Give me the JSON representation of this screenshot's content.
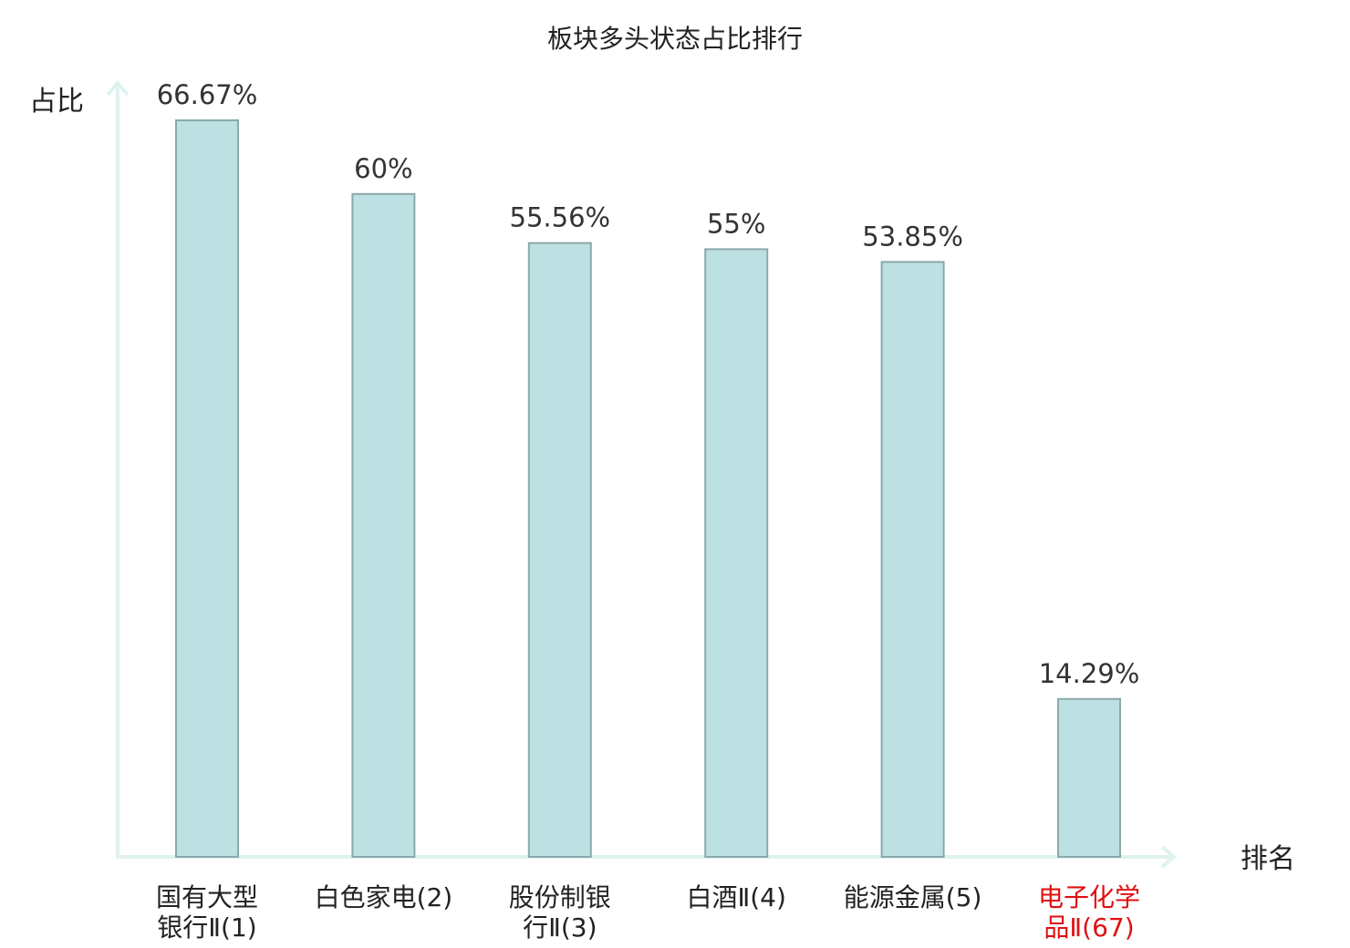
{
  "chart_data": {
    "type": "bar",
    "title": "板块多头状态占比排行",
    "ylabel": "占比",
    "xlabel": "排名",
    "ylim": [
      0,
      70
    ],
    "grid": false,
    "categories": [
      [
        "国有大型",
        "银行Ⅱ(1)"
      ],
      [
        "白色家电(2)"
      ],
      [
        "股份制银",
        "行Ⅱ(3)"
      ],
      [
        "白酒Ⅱ(4)"
      ],
      [
        "能源金属(5)"
      ],
      [
        "电子化学",
        "品Ⅱ(67)"
      ]
    ],
    "values": [
      66.67,
      60,
      55.56,
      55,
      53.85,
      14.29
    ],
    "value_labels": [
      "66.67%",
      "60%",
      "55.56%",
      "55%",
      "53.85%",
      "14.29%"
    ],
    "highlight_index": 5
  },
  "colors": {
    "bar_fill": "#bde0e3",
    "bar_stroke": "#8aa9ab",
    "axis": "#dff2ef",
    "label_default": "#222222",
    "label_highlight": "#e01010"
  }
}
